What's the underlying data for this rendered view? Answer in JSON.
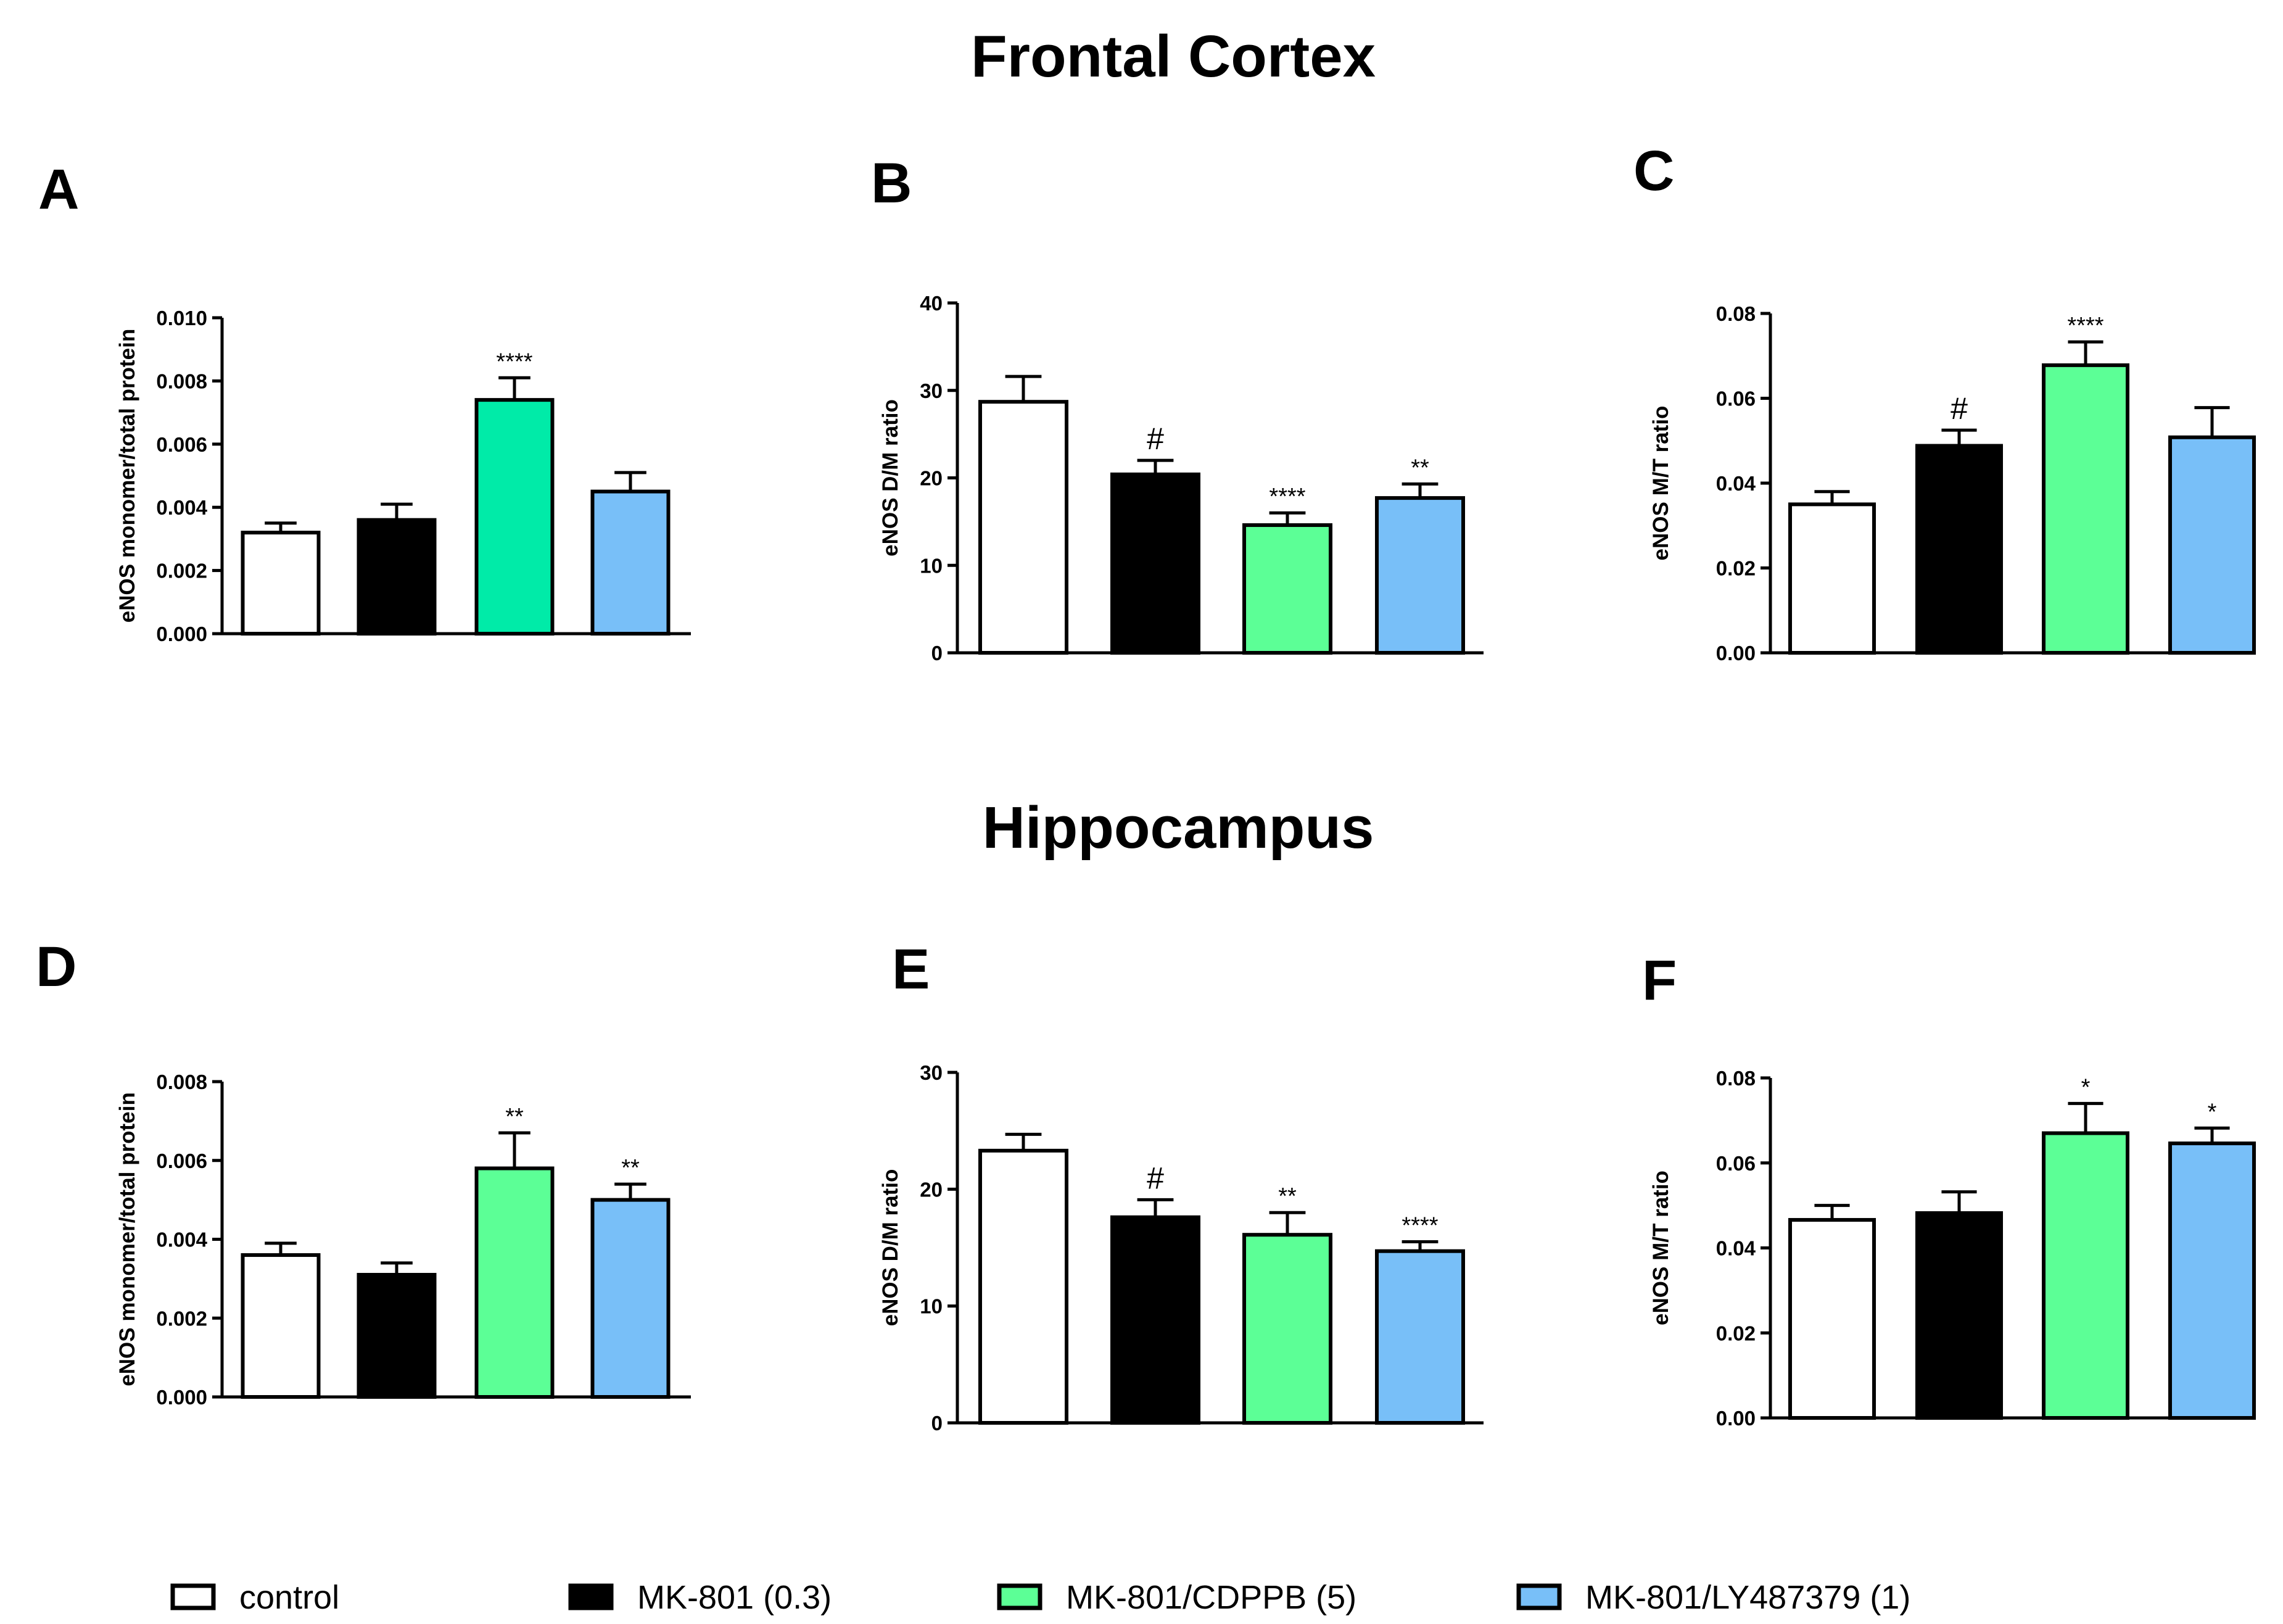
{
  "section_titles": [
    "Frontal Cortex",
    "Hippocampus"
  ],
  "legend": [
    {
      "label": "control",
      "color": "#ffffff"
    },
    {
      "label": "MK-801 (0.3)",
      "color": "#000000"
    },
    {
      "label": "MK-801/CDPPB (5)",
      "color": "#5cff96"
    },
    {
      "label": "MK-801/LY487379 (1)",
      "color": "#78bff8"
    }
  ],
  "chart_data": [
    {
      "type": "bar",
      "panel": "A",
      "section": "Frontal Cortex",
      "ylabel": "eNOS monomer/total protein",
      "xlabel": "",
      "categories": [
        "control",
        "MK-801 (0.3)",
        "MK-801/CDPPB (5)",
        "MK-801/LY487379 (1)"
      ],
      "colors": [
        "#ffffff",
        "#000000",
        "#00eba8",
        "#78bff8"
      ],
      "values": [
        0.0032,
        0.0036,
        0.0074,
        0.0045
      ],
      "errors": [
        0.0003,
        0.0005,
        0.0007,
        0.0006
      ],
      "annotations": [
        "",
        "",
        "****",
        ""
      ],
      "ylim": [
        0,
        0.01
      ],
      "ticks": [
        0.0,
        0.002,
        0.004,
        0.006,
        0.008,
        0.01
      ],
      "tick_labels": [
        "0.000",
        "0.002",
        "0.004",
        "0.006",
        "0.008",
        "0.010"
      ]
    },
    {
      "type": "bar",
      "panel": "B",
      "section": "Frontal Cortex",
      "ylabel": "eNOS D/M ratio",
      "xlabel": "",
      "categories": [
        "control",
        "MK-801 (0.3)",
        "MK-801/CDPPB (5)",
        "MK-801/LY487379 (1)"
      ],
      "colors": [
        "#ffffff",
        "#000000",
        "#5cff96",
        "#78bff8"
      ],
      "values": [
        28.7,
        20.4,
        14.6,
        17.7
      ],
      "errors": [
        2.9,
        1.6,
        1.4,
        1.6
      ],
      "annotations": [
        "",
        "#",
        "****",
        "**"
      ],
      "ylim": [
        0,
        40
      ],
      "ticks": [
        0,
        10,
        20,
        30,
        40
      ],
      "tick_labels": [
        "0",
        "10",
        "20",
        "30",
        "40"
      ]
    },
    {
      "type": "bar",
      "panel": "C",
      "section": "Frontal Cortex",
      "ylabel": "eNOS M/T ratio",
      "xlabel": "",
      "categories": [
        "control",
        "MK-801 (0.3)",
        "MK-801/CDPPB (5)",
        "MK-801/LY487379 (1)"
      ],
      "colors": [
        "#ffffff",
        "#000000",
        "#5cff96",
        "#78bff8"
      ],
      "values": [
        0.035,
        0.0488,
        0.0678,
        0.0508
      ],
      "errors": [
        0.003,
        0.0037,
        0.0055,
        0.007
      ],
      "annotations": [
        "",
        "#",
        "****",
        ""
      ],
      "ylim": [
        0,
        0.08
      ],
      "ticks": [
        0.0,
        0.02,
        0.04,
        0.06,
        0.08
      ],
      "tick_labels": [
        "0.00",
        "0.02",
        "0.04",
        "0.06",
        "0.08"
      ]
    },
    {
      "type": "bar",
      "panel": "D",
      "section": "Hippocampus",
      "ylabel": "eNOS monomer/total protein",
      "xlabel": "",
      "categories": [
        "control",
        "MK-801 (0.3)",
        "MK-801/CDPPB (5)",
        "MK-801/LY487379 (1)"
      ],
      "colors": [
        "#ffffff",
        "#000000",
        "#5cff96",
        "#78bff8"
      ],
      "values": [
        0.0036,
        0.0031,
        0.0058,
        0.005
      ],
      "errors": [
        0.0003,
        0.0003,
        0.0009,
        0.0004
      ],
      "annotations": [
        "",
        "",
        "**",
        "**"
      ],
      "ylim": [
        0,
        0.008
      ],
      "ticks": [
        0.0,
        0.002,
        0.004,
        0.006,
        0.008
      ],
      "tick_labels": [
        "0.000",
        "0.002",
        "0.004",
        "0.006",
        "0.008"
      ]
    },
    {
      "type": "bar",
      "panel": "E",
      "section": "Hippocampus",
      "ylabel": "eNOS D/M ratio",
      "xlabel": "",
      "categories": [
        "control",
        "MK-801 (0.3)",
        "MK-801/CDPPB (5)",
        "MK-801/LY487379 (1)"
      ],
      "colors": [
        "#ffffff",
        "#000000",
        "#5cff96",
        "#78bff8"
      ],
      "values": [
        23.3,
        17.6,
        16.1,
        14.7
      ],
      "errors": [
        1.4,
        1.5,
        1.9,
        0.8
      ],
      "annotations": [
        "",
        "#",
        "**",
        "****"
      ],
      "ylim": [
        0,
        30
      ],
      "ticks": [
        0,
        10,
        20,
        30
      ],
      "tick_labels": [
        "0",
        "10",
        "20",
        "30"
      ]
    },
    {
      "type": "bar",
      "panel": "F",
      "section": "Hippocampus",
      "ylabel": "eNOS M/T ratio",
      "xlabel": "",
      "categories": [
        "control",
        "MK-801 (0.3)",
        "MK-801/CDPPB (5)",
        "MK-801/LY487379 (1)"
      ],
      "colors": [
        "#ffffff",
        "#000000",
        "#5cff96",
        "#78bff8"
      ],
      "values": [
        0.0466,
        0.0482,
        0.067,
        0.0646
      ],
      "errors": [
        0.0034,
        0.005,
        0.007,
        0.0036
      ],
      "annotations": [
        "",
        "",
        "*",
        "*"
      ],
      "ylim": [
        0,
        0.08
      ],
      "ticks": [
        0.0,
        0.02,
        0.04,
        0.06,
        0.08
      ],
      "tick_labels": [
        "0.00",
        "0.02",
        "0.04",
        "0.06",
        "0.08"
      ]
    }
  ]
}
